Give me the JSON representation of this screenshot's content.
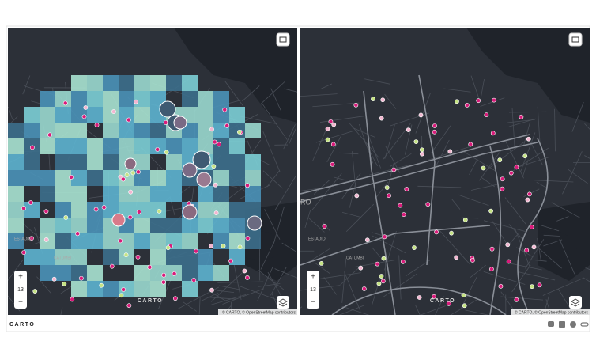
{
  "left_map": {
    "zoom_in": "+",
    "zoom": "13",
    "zoom_out": "−",
    "watermark": "CARTO",
    "attribution": "© CARTO, © OpenStreetMap contributors",
    "place_labels": [
      "ESTADIO",
      "CATUMBI"
    ]
  },
  "right_map": {
    "zoom_in": "+",
    "zoom": "13",
    "zoom_out": "−",
    "watermark": "CARTO",
    "attribution": "© CARTO, © OpenStreetMap contributors",
    "place_labels": [
      "RO",
      "ESTADIO",
      "CATUMBI"
    ]
  },
  "footer": {
    "logo": "CARTO"
  }
}
